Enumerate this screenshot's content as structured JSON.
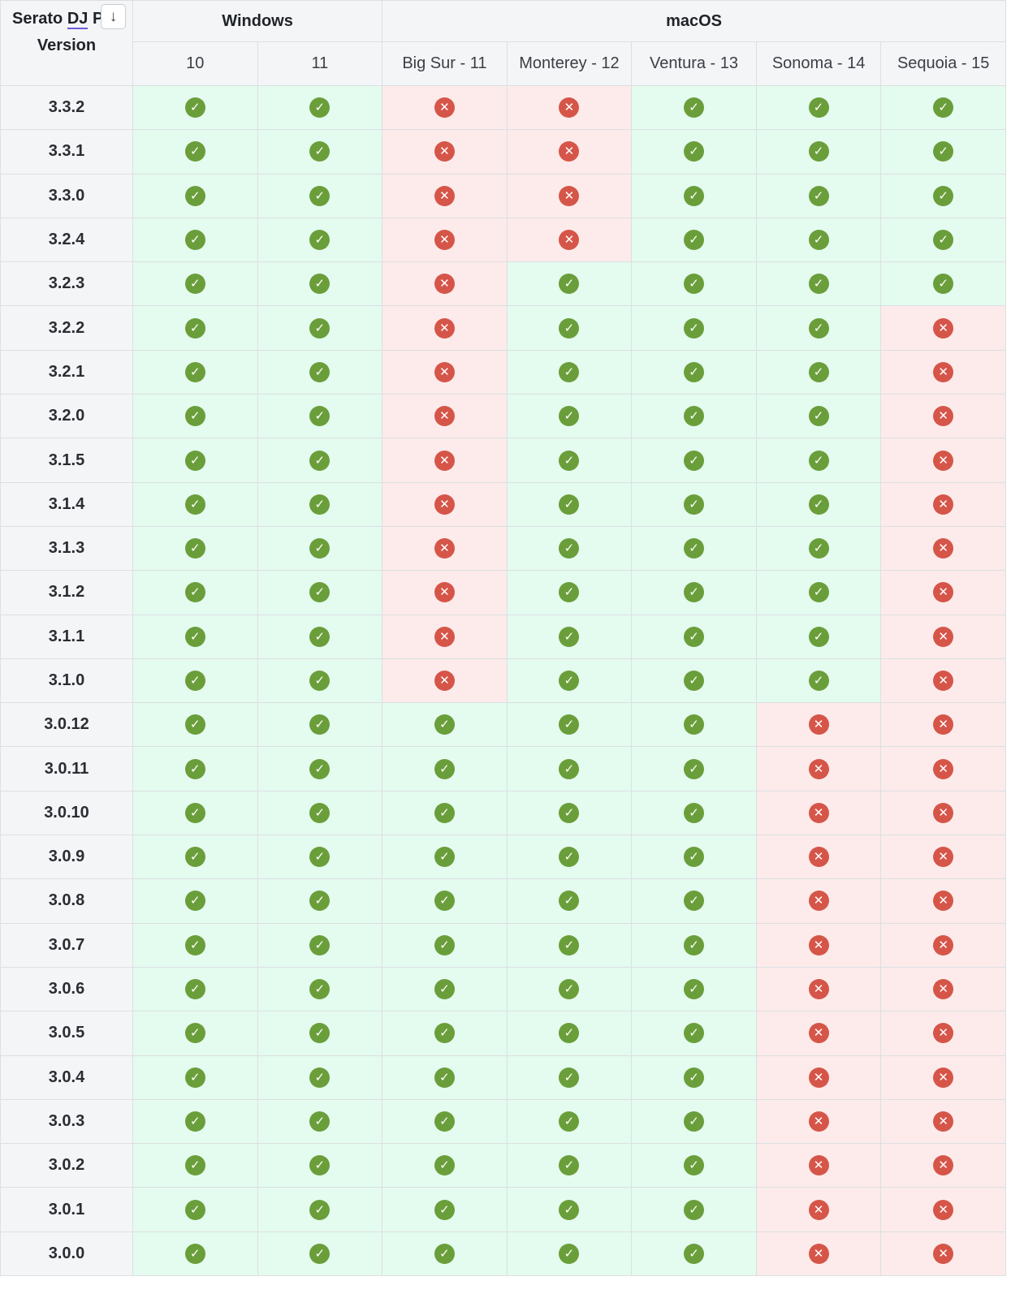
{
  "header": {
    "version_col_line1": "Serato DJ P",
    "version_col_line1_underlined": "DJ",
    "version_col_line2": "Version",
    "sort_icon": "arrow-down-icon",
    "sort_glyph": "↓",
    "groups": [
      {
        "label": "Windows",
        "span": 2
      },
      {
        "label": "macOS",
        "span": 5
      }
    ],
    "os_columns": [
      "10",
      "11",
      "Big Sur - 11",
      "Monterey - 12",
      "Ventura - 13",
      "Sonoma - 14",
      "Sequoia - 15"
    ]
  },
  "icons": {
    "supported": {
      "name": "check-circle-icon",
      "glyph": "✓",
      "color": "#6a9e3a",
      "cell_bg": "#e4fbef"
    },
    "unsupported": {
      "name": "x-circle-icon",
      "glyph": "✕",
      "color": "#d65549",
      "cell_bg": "#fcebea"
    }
  },
  "rows": [
    {
      "version": "3.3.2",
      "support": [
        1,
        1,
        0,
        0,
        1,
        1,
        1
      ]
    },
    {
      "version": "3.3.1",
      "support": [
        1,
        1,
        0,
        0,
        1,
        1,
        1
      ]
    },
    {
      "version": "3.3.0",
      "support": [
        1,
        1,
        0,
        0,
        1,
        1,
        1
      ]
    },
    {
      "version": "3.2.4",
      "support": [
        1,
        1,
        0,
        0,
        1,
        1,
        1
      ]
    },
    {
      "version": "3.2.3",
      "support": [
        1,
        1,
        0,
        1,
        1,
        1,
        1
      ]
    },
    {
      "version": "3.2.2",
      "support": [
        1,
        1,
        0,
        1,
        1,
        1,
        0
      ]
    },
    {
      "version": "3.2.1",
      "support": [
        1,
        1,
        0,
        1,
        1,
        1,
        0
      ]
    },
    {
      "version": "3.2.0",
      "support": [
        1,
        1,
        0,
        1,
        1,
        1,
        0
      ]
    },
    {
      "version": "3.1.5",
      "support": [
        1,
        1,
        0,
        1,
        1,
        1,
        0
      ]
    },
    {
      "version": "3.1.4",
      "support": [
        1,
        1,
        0,
        1,
        1,
        1,
        0
      ]
    },
    {
      "version": "3.1.3",
      "support": [
        1,
        1,
        0,
        1,
        1,
        1,
        0
      ]
    },
    {
      "version": "3.1.2",
      "support": [
        1,
        1,
        0,
        1,
        1,
        1,
        0
      ]
    },
    {
      "version": "3.1.1",
      "support": [
        1,
        1,
        0,
        1,
        1,
        1,
        0
      ]
    },
    {
      "version": "3.1.0",
      "support": [
        1,
        1,
        0,
        1,
        1,
        1,
        0
      ]
    },
    {
      "version": "3.0.12",
      "support": [
        1,
        1,
        1,
        1,
        1,
        0,
        0
      ]
    },
    {
      "version": "3.0.11",
      "support": [
        1,
        1,
        1,
        1,
        1,
        0,
        0
      ]
    },
    {
      "version": "3.0.10",
      "support": [
        1,
        1,
        1,
        1,
        1,
        0,
        0
      ]
    },
    {
      "version": "3.0.9",
      "support": [
        1,
        1,
        1,
        1,
        1,
        0,
        0
      ]
    },
    {
      "version": "3.0.8",
      "support": [
        1,
        1,
        1,
        1,
        1,
        0,
        0
      ]
    },
    {
      "version": "3.0.7",
      "support": [
        1,
        1,
        1,
        1,
        1,
        0,
        0
      ]
    },
    {
      "version": "3.0.6",
      "support": [
        1,
        1,
        1,
        1,
        1,
        0,
        0
      ]
    },
    {
      "version": "3.0.5",
      "support": [
        1,
        1,
        1,
        1,
        1,
        0,
        0
      ]
    },
    {
      "version": "3.0.4",
      "support": [
        1,
        1,
        1,
        1,
        1,
        0,
        0
      ]
    },
    {
      "version": "3.0.3",
      "support": [
        1,
        1,
        1,
        1,
        1,
        0,
        0
      ]
    },
    {
      "version": "3.0.2",
      "support": [
        1,
        1,
        1,
        1,
        1,
        0,
        0
      ]
    },
    {
      "version": "3.0.1",
      "support": [
        1,
        1,
        1,
        1,
        1,
        0,
        0
      ]
    },
    {
      "version": "3.0.0",
      "support": [
        1,
        1,
        1,
        1,
        1,
        0,
        0
      ]
    }
  ]
}
